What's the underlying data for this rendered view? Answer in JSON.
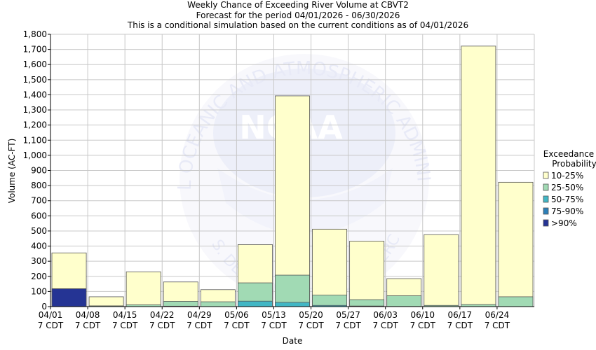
{
  "chart_data": {
    "type": "bar",
    "stacked": true,
    "title": "Weekly Chance of Exceeding River Volume at CBVT2",
    "subtitle": "Forecast for the period 04/01/2026 - 06/30/2026",
    "subtitle2": "This is a conditional simulation based on the current conditions as of 04/01/2026",
    "xlabel": "Date",
    "ylabel": "Volume (AC-FT)",
    "ylim": [
      0,
      1800
    ],
    "yticks": [
      0,
      100,
      200,
      300,
      400,
      500,
      600,
      700,
      800,
      900,
      1000,
      1100,
      1200,
      1300,
      1400,
      1500,
      1600,
      1700,
      1800
    ],
    "ytick_labels": [
      "0",
      "100",
      "200",
      "300",
      "400",
      "500",
      "600",
      "700",
      "800",
      "900",
      "1,000",
      "1,100",
      "1,200",
      "1,300",
      "1,400",
      "1,500",
      "1,600",
      "1,700",
      "1,800"
    ],
    "xtick_dates": [
      "04/01",
      "04/08",
      "04/15",
      "04/22",
      "04/29",
      "05/06",
      "05/13",
      "05/20",
      "05/27",
      "06/03",
      "06/10",
      "06/17",
      "06/24"
    ],
    "xtick_times": [
      "7 CDT",
      "7 CDT",
      "7 CDT",
      "7 CDT",
      "7 CDT",
      "7 CDT",
      "7 CDT",
      "7 CDT",
      "7 CDT",
      "7 CDT",
      "7 CDT",
      "7 CDT",
      "7 CDT"
    ],
    "grid": true,
    "legend_title": [
      "Exceedance",
      "Probability"
    ],
    "legend_position": "right",
    "series": [
      {
        "name": "10-25%",
        "color": "#ffffcc",
        "top_values": [
          355,
          65,
          230,
          163,
          112,
          410,
          1393,
          512,
          433,
          185,
          476,
          1722,
          822
        ]
      },
      {
        "name": "25-50%",
        "color": "#a1dab4",
        "top_values": [
          118,
          5,
          12,
          35,
          32,
          157,
          208,
          76,
          46,
          72,
          8,
          14,
          65
        ]
      },
      {
        "name": "50-75%",
        "color": "#41b6c4",
        "top_values": [
          118,
          0,
          0,
          3,
          0,
          36,
          28,
          8,
          4,
          1,
          0,
          0,
          0
        ]
      },
      {
        "name": "75-90%",
        "color": "#2c7fb8",
        "top_values": [
          118,
          0,
          0,
          0,
          0,
          0,
          0,
          0,
          0,
          0,
          0,
          0,
          0
        ]
      },
      {
        "name": ">90%",
        "color": "#253494",
        "top_values": [
          118,
          0,
          0,
          0,
          0,
          0,
          0,
          0,
          0,
          0,
          0,
          0,
          0
        ]
      }
    ],
    "watermark": {
      "ring_text_top": "NATIONAL OCEANIC AND ATMOSPHERIC ADMINISTRATION",
      "ring_text_bottom": "U.S. DEPARTMENT OF COMMERCE",
      "center_text": "NOAA"
    }
  }
}
